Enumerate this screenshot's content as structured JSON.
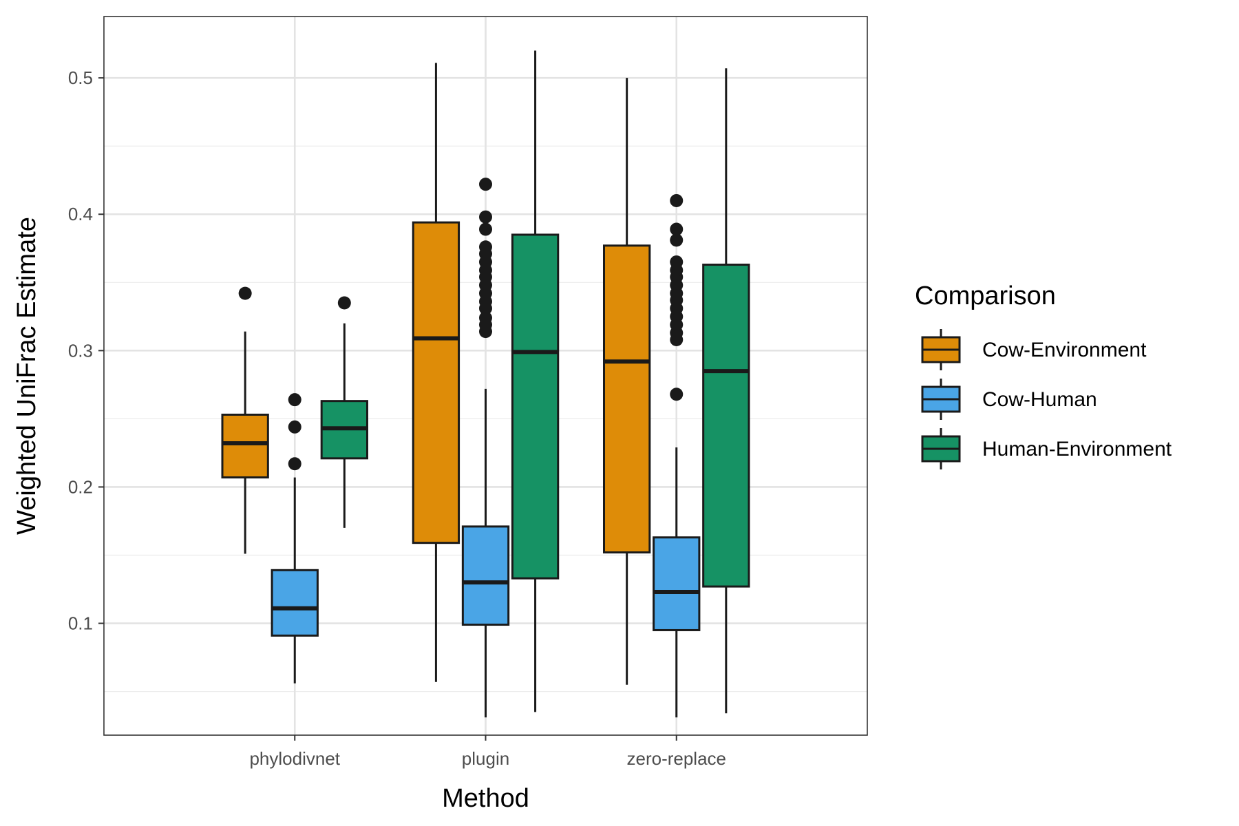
{
  "chart_data": {
    "type": "boxplot",
    "xlabel": "Method",
    "ylabel": "Weighted UniFrac Estimate",
    "categories": [
      "phylodivnet",
      "plugin",
      "zero-replace"
    ],
    "ylim": [
      0.018,
      0.545
    ],
    "yticks": [
      0.1,
      0.2,
      0.3,
      0.4,
      0.5
    ],
    "ytick_labels": [
      "0.1",
      "0.2",
      "0.3",
      "0.4",
      "0.5"
    ],
    "grid": true,
    "legend": {
      "title": "Comparison",
      "position": "right",
      "entries": [
        "Cow-Environment",
        "Cow-Human",
        "Human-Environment"
      ]
    },
    "series": [
      {
        "name": "Cow-Environment",
        "color": "#DE8C08",
        "boxes": [
          {
            "whisker_low": 0.151,
            "q1": 0.207,
            "median": 0.232,
            "q3": 0.253,
            "whisker_high": 0.314,
            "outliers": [
              0.342
            ]
          },
          {
            "whisker_low": 0.057,
            "q1": 0.159,
            "median": 0.309,
            "q3": 0.394,
            "whisker_high": 0.511,
            "outliers": []
          },
          {
            "whisker_low": 0.055,
            "q1": 0.152,
            "median": 0.292,
            "q3": 0.377,
            "whisker_high": 0.5,
            "outliers": []
          }
        ]
      },
      {
        "name": "Cow-Human",
        "color": "#4AA5E6",
        "boxes": [
          {
            "whisker_low": 0.056,
            "q1": 0.091,
            "median": 0.111,
            "q3": 0.139,
            "whisker_high": 0.207,
            "outliers": [
              0.217,
              0.244,
              0.264
            ]
          },
          {
            "whisker_low": 0.031,
            "q1": 0.099,
            "median": 0.13,
            "q3": 0.171,
            "whisker_high": 0.272,
            "outliers": [
              0.314,
              0.319,
              0.324,
              0.331,
              0.336,
              0.342,
              0.348,
              0.354,
              0.359,
              0.365,
              0.371,
              0.376,
              0.389,
              0.398,
              0.422
            ]
          },
          {
            "whisker_low": 0.031,
            "q1": 0.095,
            "median": 0.123,
            "q3": 0.163,
            "whisker_high": 0.229,
            "outliers": [
              0.268,
              0.308,
              0.313,
              0.319,
              0.325,
              0.331,
              0.337,
              0.342,
              0.348,
              0.354,
              0.359,
              0.365,
              0.381,
              0.389,
              0.41
            ]
          }
        ]
      },
      {
        "name": "Human-Environment",
        "color": "#169264",
        "boxes": [
          {
            "whisker_low": 0.17,
            "q1": 0.221,
            "median": 0.243,
            "q3": 0.263,
            "whisker_high": 0.32,
            "outliers": [
              0.335
            ]
          },
          {
            "whisker_low": 0.035,
            "q1": 0.133,
            "median": 0.299,
            "q3": 0.385,
            "whisker_high": 0.52,
            "outliers": []
          },
          {
            "whisker_low": 0.034,
            "q1": 0.127,
            "median": 0.285,
            "q3": 0.363,
            "whisker_high": 0.507,
            "outliers": []
          }
        ]
      }
    ]
  }
}
